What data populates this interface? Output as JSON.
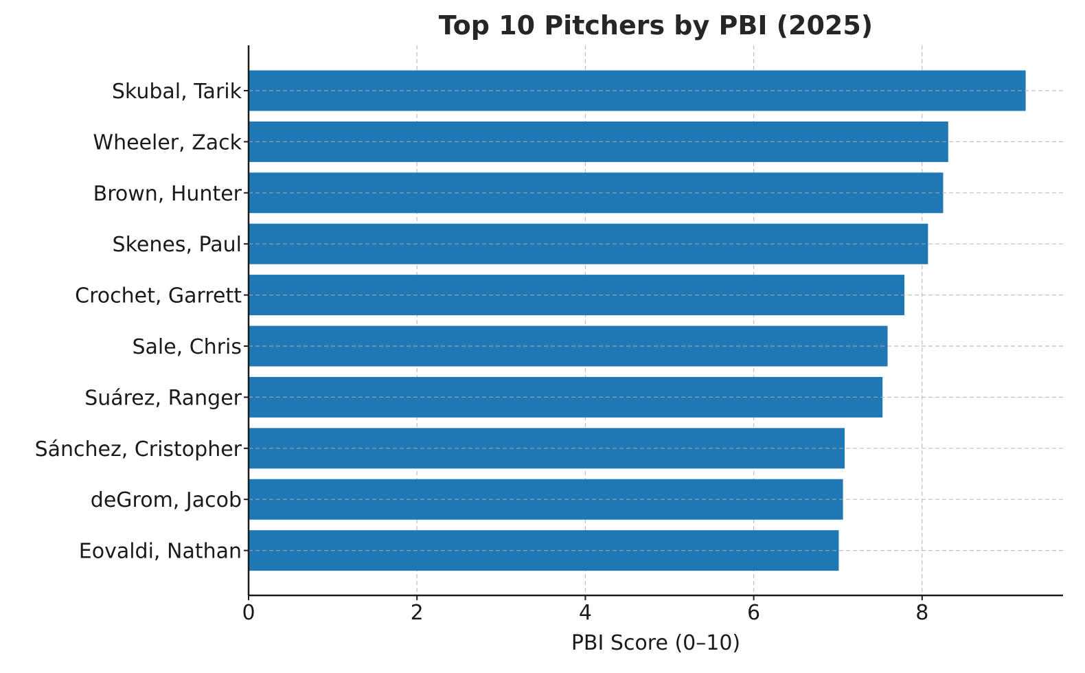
{
  "chart_data": {
    "type": "bar",
    "orientation": "horizontal",
    "title": "Top 10 Pitchers by PBI (2025)",
    "xlabel": "PBI Score (0–10)",
    "ylabel": "",
    "xlim": [
      0,
      9.7
    ],
    "xticks": [
      "0",
      "2",
      "4",
      "6",
      "8"
    ],
    "xtick_values": [
      0,
      2,
      4,
      6,
      8
    ],
    "grid": true,
    "grid_style": "dashed",
    "bar_color": "#1f77b4",
    "categories": [
      "Skubal, Tarik",
      "Wheeler, Zack",
      "Brown, Hunter",
      "Skenes, Paul",
      "Crochet, Garrett",
      "Sale, Chris",
      "Suárez, Ranger",
      "Sánchez, Cristopher",
      "deGrom, Jacob",
      "Eovaldi, Nathan"
    ],
    "values": [
      9.23,
      8.31,
      8.25,
      8.07,
      7.79,
      7.59,
      7.53,
      7.08,
      7.06,
      7.01
    ]
  }
}
